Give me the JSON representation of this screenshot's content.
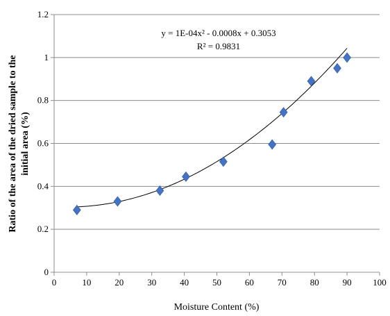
{
  "chart_data": {
    "type": "scatter",
    "xlabel": "Moisture Content (%)",
    "ylabel_lines": [
      "Ratio of the area of the dried sample to the",
      "initial area (%)"
    ],
    "xlim": [
      0,
      100
    ],
    "ylim": [
      0,
      1.2
    ],
    "x_ticks": [
      0,
      10,
      20,
      30,
      40,
      50,
      60,
      70,
      80,
      90,
      100
    ],
    "y_ticks": [
      0,
      0.2,
      0.4,
      0.6,
      0.8,
      1,
      1.2
    ],
    "grid": "horizontal",
    "marker": "diamond",
    "marker_color": "#4472C4",
    "trendline_color": "#000000",
    "points": [
      {
        "x": 7,
        "y": 0.29
      },
      {
        "x": 19.5,
        "y": 0.33
      },
      {
        "x": 32.5,
        "y": 0.38
      },
      {
        "x": 40.5,
        "y": 0.445
      },
      {
        "x": 52,
        "y": 0.515
      },
      {
        "x": 67,
        "y": 0.595
      },
      {
        "x": 70.5,
        "y": 0.745
      },
      {
        "x": 79,
        "y": 0.89
      },
      {
        "x": 87,
        "y": 0.95
      },
      {
        "x": 90,
        "y": 1.0
      }
    ],
    "trendline": {
      "type": "polynomial",
      "coefficients": [
        0.0001,
        -0.0008,
        0.3053
      ],
      "x_range": [
        7,
        90
      ]
    },
    "equation_lines": [
      "y = 1E-04x² - 0.0008x + 0.3053",
      "R² = 0.9831"
    ]
  }
}
